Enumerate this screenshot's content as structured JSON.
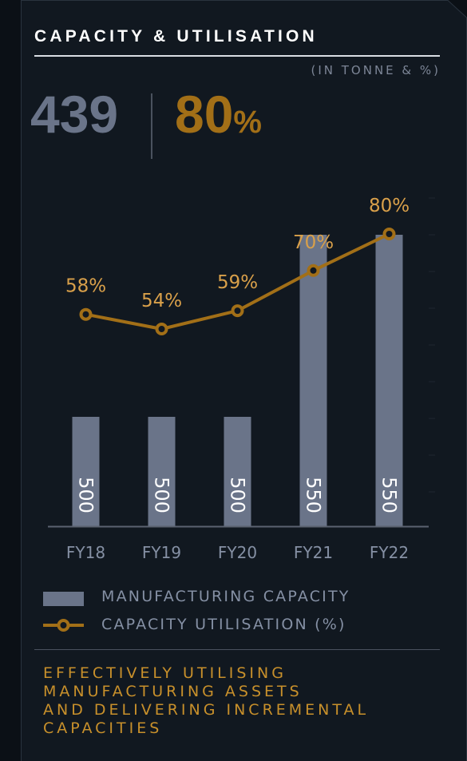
{
  "header": {
    "title": "CAPACITY & UTILISATION",
    "unit_note": "(IN TONNE & %)"
  },
  "kpis": {
    "capacity": "439",
    "utilisation_number": "80",
    "utilisation_symbol": "%"
  },
  "legend": {
    "capacity_label": "MANUFACTURING CAPACITY",
    "utilisation_label": "CAPACITY UTILISATION (%)"
  },
  "footer": {
    "tagline_lines": [
      "EFFECTIVELY UTILISING",
      "MANUFACTURING ASSETS",
      "AND DELIVERING INCREMENTAL",
      "CAPACITIES"
    ]
  },
  "colors": {
    "capacity_bar": "#6a7489",
    "utilisation_line": "#a26f17",
    "utilisation_label": "#d9a04a",
    "axis_label": "#8590a4",
    "background": "#111820"
  },
  "chart_data": {
    "type": "bar",
    "categories": [
      "FY18",
      "FY19",
      "FY20",
      "FY21",
      "FY22"
    ],
    "series": [
      {
        "name": "MANUFACTURING CAPACITY",
        "type": "bar",
        "values": [
          500,
          500,
          500,
          550,
          550
        ],
        "labels": [
          "500",
          "500",
          "500",
          "550",
          "550"
        ]
      },
      {
        "name": "CAPACITY UTILISATION (%)",
        "type": "line",
        "values": [
          58,
          54,
          59,
          70,
          80
        ],
        "labels": [
          "58%",
          "54%",
          "59%",
          "70%",
          "80%"
        ]
      }
    ],
    "legend_position": "bottom",
    "grid": false
  }
}
